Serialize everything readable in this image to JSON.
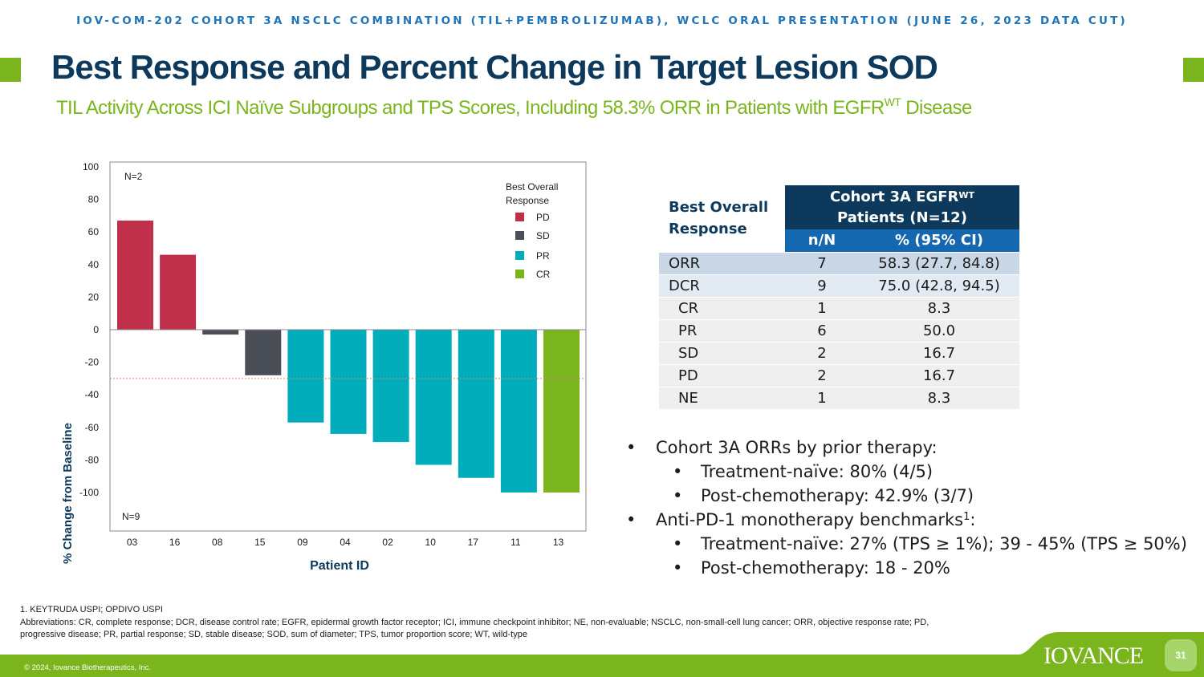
{
  "header": {
    "band": "IOV-COM-202 COHORT 3A NSCLC COMBINATION (TIL+PEMBROLIZUMAB), WCLC ORAL PRESENTATION (JUNE 26, 2023 DATA CUT)",
    "title": "Best Response and Percent Change in Target Lesion SOD",
    "subtitle_main": "TIL Activity Across ICI Naïve Subgroups and TPS Scores, Including 58.3% ORR in Patients with EGFR",
    "subtitle_sup": "WT",
    "subtitle_end": " Disease"
  },
  "chart_data": {
    "type": "bar",
    "title": "",
    "xlabel": "Patient ID",
    "ylabel": "% Change from Baseline",
    "ylim": [
      -120,
      100
    ],
    "yticks": [
      100,
      80,
      60,
      40,
      20,
      0,
      -20,
      -40,
      -60,
      -80,
      -100
    ],
    "reference_line": -30,
    "categories": [
      "03",
      "16",
      "08",
      "15",
      "09",
      "04",
      "02",
      "10",
      "17",
      "11",
      "13"
    ],
    "values": [
      67,
      46,
      -3,
      -28,
      -57,
      -64,
      -69,
      -83,
      -91,
      -100,
      -100
    ],
    "responses": [
      "PD",
      "PD",
      "SD",
      "SD",
      "PR",
      "PR",
      "PR",
      "PR",
      "PR",
      "PR",
      "CR"
    ],
    "annotations": [
      "N=2",
      "N=9"
    ],
    "legend": {
      "title_line1": "Best Overall",
      "title_line2": "Response",
      "placement": "top-right",
      "entries": [
        {
          "label": "PD",
          "color": "#c0304a"
        },
        {
          "label": "SD",
          "color": "#4a4f57"
        },
        {
          "label": "PR",
          "color": "#00adba"
        },
        {
          "label": "CR",
          "color": "#7ab51d"
        }
      ]
    },
    "grid": false
  },
  "table": {
    "label_line1": "Best Overall",
    "label_line2": "Response",
    "cohort_line1": "Cohort 3A EGFR",
    "cohort_sup": "WT",
    "cohort_line2": "Patients (N=12)",
    "col_n": "n/N",
    "col_pct": "% (95% CI)",
    "rows": [
      {
        "label": "ORR",
        "n": "7",
        "pct": "58.3 (27.7, 84.8)"
      },
      {
        "label": "DCR",
        "n": "9",
        "pct": "75.0 (42.8, 94.5)"
      },
      {
        "label": "CR",
        "n": "1",
        "pct": "8.3"
      },
      {
        "label": "PR",
        "n": "6",
        "pct": "50.0"
      },
      {
        "label": "SD",
        "n": "2",
        "pct": "16.7"
      },
      {
        "label": "PD",
        "n": "2",
        "pct": "16.7"
      },
      {
        "label": "NE",
        "n": "1",
        "pct": "8.3"
      }
    ]
  },
  "bullets": {
    "b1": "Cohort 3A ORRs by prior therapy:",
    "b1a": "Treatment-naïve: 80% (4/5)",
    "b1b": "Post-chemotherapy: 42.9% (3/7)",
    "b2": "Anti-PD-1 monotherapy benchmarks",
    "b2_sup": "1",
    "b2_end": ":",
    "b2a": "Treatment-naïve: 27% (TPS ≥ 1%); 39 - 45% (TPS ≥ 50%)",
    "b2b": "Post-chemotherapy: 18 - 20%"
  },
  "footnotes": {
    "line1": "1. KEYTRUDA USPI; OPDIVO USPI",
    "line2": "Abbreviations: CR, complete response; DCR, disease control rate; EGFR, epidermal growth factor receptor; ICI, immune checkpoint inhibitor; NE, non-evaluable; NSCLC, non-small-cell lung cancer; ORR, objective response rate; PD, progressive disease; PR, partial response; SD, stable disease; SOD, sum of diameter; TPS, tumor proportion score; WT, wild-type"
  },
  "footer": {
    "copyright": "© 2024, Iovance Biotherapeutics, Inc.",
    "brand": "IOVANCE",
    "page": "31",
    "color_green": "#7ab51d"
  }
}
